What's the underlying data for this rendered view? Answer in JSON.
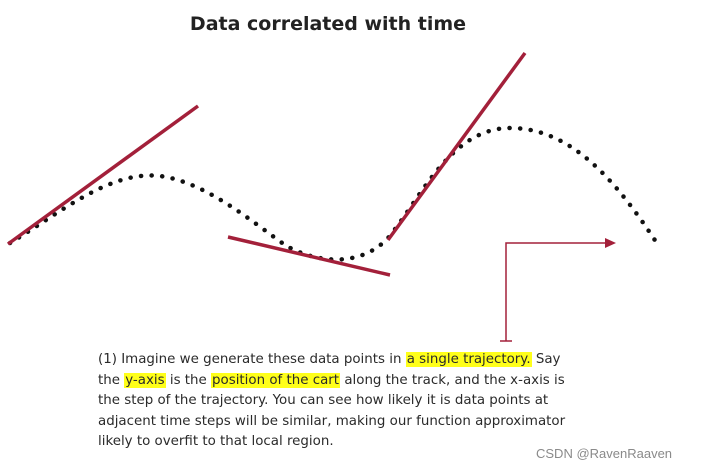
{
  "title": "Data correlated with time",
  "annotation": {
    "marker": "(1)",
    "segments": [
      {
        "text": "Imagine we generate these data points in ",
        "highlight": false
      },
      {
        "text": "a single trajectory.",
        "highlight": true
      },
      {
        "text": " Say the ",
        "highlight": false
      },
      {
        "text": "y-axis",
        "highlight": true
      },
      {
        "text": " is the ",
        "highlight": false
      },
      {
        "text": "position of the cart",
        "highlight": true
      },
      {
        "text": " along the track, and the x-axis is the step of the trajectory. You can see how likely it is data points at adjacent time steps will be similar, making our function approximator likely to overfit to that local region.",
        "highlight": false
      }
    ]
  },
  "watermark": "CSDN @RavenRaaven",
  "colors": {
    "tangent_line": "#a3203a",
    "callout": "#a3203a",
    "dots": "#111111",
    "highlight": "#ffff1a"
  }
}
